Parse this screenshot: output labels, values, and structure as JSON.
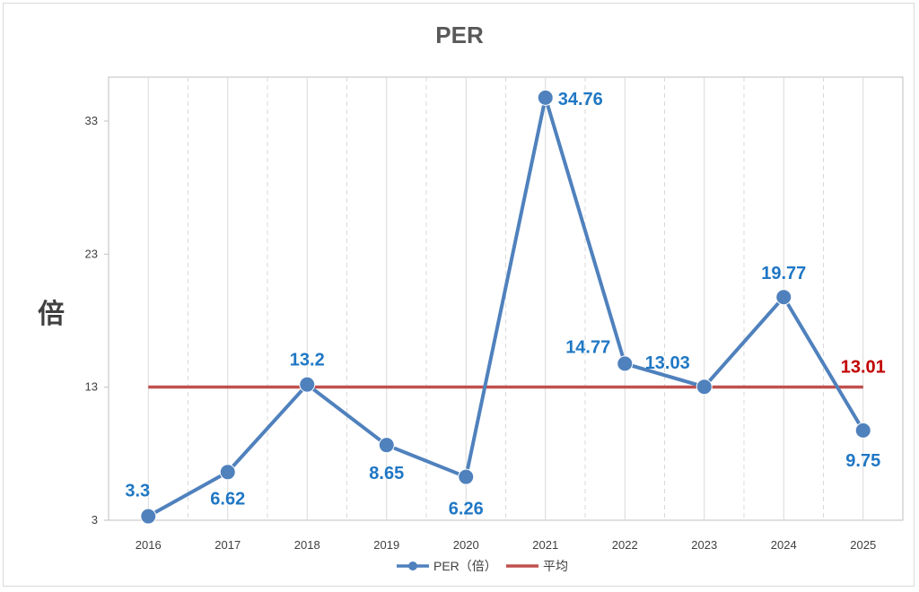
{
  "chart_data": {
    "type": "line",
    "title": "PER",
    "xlabel": "",
    "ylabel": "倍",
    "categories": [
      "2016",
      "2017",
      "2018",
      "2019",
      "2020",
      "2021",
      "2022",
      "2023",
      "2024",
      "2025"
    ],
    "yticks": [
      "3",
      "13",
      "23",
      "33"
    ],
    "ylim": [
      3,
      36.3
    ],
    "grid": "vertical dashed",
    "legend_position": "bottom",
    "series": [
      {
        "name": "PER（倍）",
        "color": "#4f81bd",
        "values": [
          3.3,
          6.62,
          13.2,
          8.65,
          6.26,
          34.76,
          14.77,
          13.03,
          19.77,
          9.75
        ],
        "labels": [
          "3.3",
          "6.62",
          "13.2",
          "8.65",
          "6.26",
          "34.76",
          "14.77",
          "13.03",
          "19.77",
          "9.75"
        ],
        "label_color": "#1f77c4"
      },
      {
        "name": "平均",
        "color": "#c0504d",
        "values": [
          13.01,
          13.01,
          13.01,
          13.01,
          13.01,
          13.01,
          13.01,
          13.01,
          13.01,
          13.01
        ],
        "end_label": "13.01",
        "label_color": "#c00000"
      }
    ]
  }
}
